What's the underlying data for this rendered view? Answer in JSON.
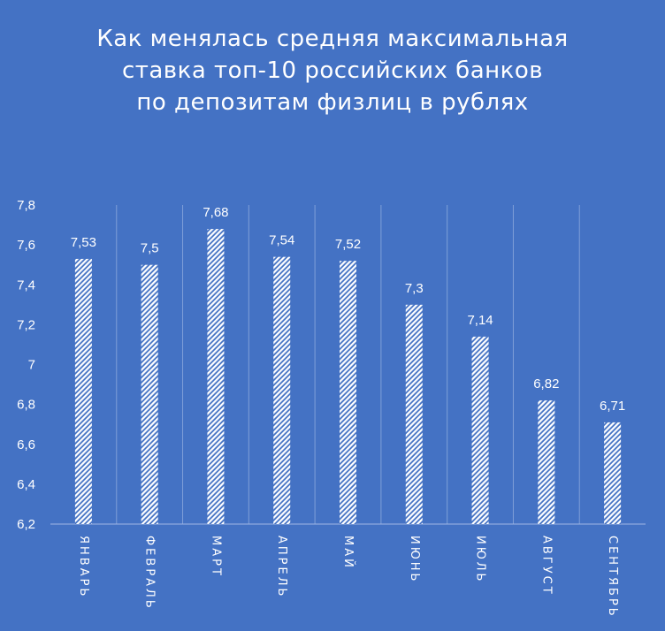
{
  "chart_data": {
    "type": "bar",
    "title_lines": [
      "Как менялась средняя максимальная",
      "ставка топ-10 российских банков",
      "по депозитам физлиц в рублях"
    ],
    "categories": [
      "ЯНВАРЬ",
      "ФЕВРАЛЬ",
      "МАРТ",
      "АПРЕЛЬ",
      "МАЙ",
      "ИЮНЬ",
      "ИЮЛЬ",
      "АВГУСТ",
      "СЕНТЯБРЬ"
    ],
    "values": [
      7.53,
      7.5,
      7.68,
      7.54,
      7.52,
      7.3,
      7.14,
      6.82,
      6.71
    ],
    "data_labels": [
      "7,53",
      "7,5",
      "7,68",
      "7,54",
      "7,52",
      "7,3",
      "7,14",
      "6,82",
      "6,71"
    ],
    "ylim": [
      6.2,
      7.8
    ],
    "yticks": [
      6.2,
      6.4,
      6.6,
      6.8,
      7.0,
      7.2,
      7.4,
      7.6,
      7.8
    ],
    "ytick_labels": [
      "6,2",
      "6,4",
      "6,6",
      "6,8",
      "7",
      "7,2",
      "7,4",
      "7,6",
      "7,8"
    ],
    "grid": "vertical",
    "legend": "none",
    "colors": {
      "background": "#4472c4",
      "bar_stripe": "#ffffff",
      "bar_stripe_alt": "#4472c4",
      "text": "#ffffff"
    }
  }
}
